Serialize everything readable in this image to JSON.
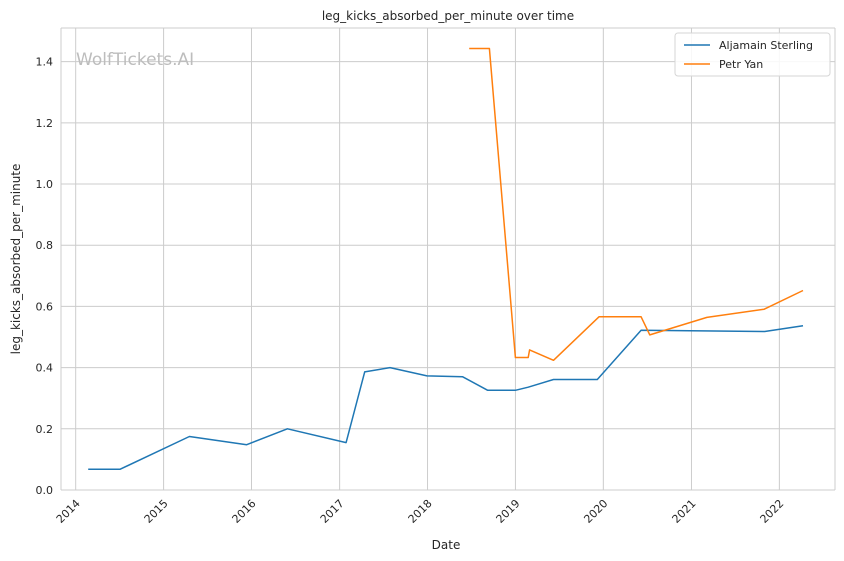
{
  "chart_data": {
    "type": "line",
    "title": "leg_kicks_absorbed_per_minute over time",
    "xlabel": "Date",
    "ylabel": "leg_kicks_absorbed_per_minute",
    "watermark": "WolfTickets.AI",
    "xlim": [
      "2013-11-01",
      "2022-08-20"
    ],
    "ylim": [
      0,
      1.51
    ],
    "x_ticks": [
      "2014",
      "2015",
      "2016",
      "2017",
      "2018",
      "2019",
      "2020",
      "2021",
      "2022"
    ],
    "y_ticks": [
      "0.0",
      "0.2",
      "0.4",
      "0.6",
      "0.8",
      "1.0",
      "1.2",
      "1.4"
    ],
    "grid": true,
    "legend_position": "top-right",
    "series": [
      {
        "name": "Aljamain Sterling",
        "color": "#1f77b4",
        "points": [
          [
            "2014-02-22",
            0.068
          ],
          [
            "2014-07-05",
            0.068
          ],
          [
            "2015-04-18",
            0.175
          ],
          [
            "2015-12-12",
            0.148
          ],
          [
            "2016-05-29",
            0.2
          ],
          [
            "2017-01-28",
            0.155
          ],
          [
            "2017-04-15",
            0.386
          ],
          [
            "2017-07-29",
            0.4
          ],
          [
            "2017-12-30",
            0.373
          ],
          [
            "2018-05-27",
            0.37
          ],
          [
            "2018-09-08",
            0.326
          ],
          [
            "2019-01-01",
            0.326
          ],
          [
            "2019-02-23",
            0.336
          ],
          [
            "2019-06-08",
            0.361
          ],
          [
            "2019-12-07",
            0.361
          ],
          [
            "2020-06-06",
            0.522
          ],
          [
            "2021-11-01",
            0.518
          ],
          [
            "2022-04-09",
            0.537
          ]
        ]
      },
      {
        "name": "Petr Yan",
        "color": "#ff7f0e",
        "points": [
          [
            "2018-06-23",
            1.443
          ],
          [
            "2018-09-15",
            1.443
          ],
          [
            "2019-01-01",
            0.433
          ],
          [
            "2019-02-23",
            0.433
          ],
          [
            "2019-03-01",
            0.458
          ],
          [
            "2019-06-08",
            0.424
          ],
          [
            "2019-12-14",
            0.566
          ],
          [
            "2020-06-06",
            0.566
          ],
          [
            "2020-07-12",
            0.507
          ],
          [
            "2021-03-06",
            0.564
          ],
          [
            "2021-10-30",
            0.591
          ],
          [
            "2022-04-09",
            0.652
          ]
        ]
      }
    ]
  }
}
